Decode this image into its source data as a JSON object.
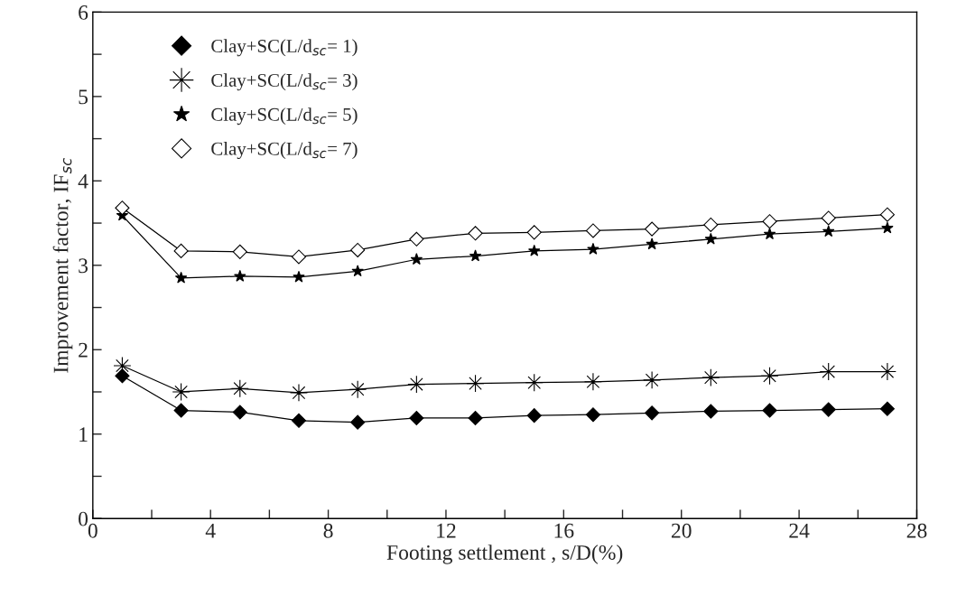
{
  "chart_data": {
    "type": "line",
    "xlabel": "Footing settlement , s/D(%)",
    "ylabel": "Improvement factor, IF$_{sc}$",
    "x": [
      1,
      3,
      5,
      7,
      9,
      11,
      13,
      15,
      17,
      19,
      21,
      23,
      25,
      27
    ],
    "series": [
      {
        "name": "Clay+SC(L/d$_{sc}$= 1)",
        "color": "#000000",
        "marker": "diamond",
        "values": [
          1.69,
          1.28,
          1.26,
          1.16,
          1.14,
          1.19,
          1.19,
          1.22,
          1.23,
          1.25,
          1.27,
          1.28,
          1.29,
          1.3
        ]
      },
      {
        "name": "Clay+SC(L/d$_{sc}$= 3)",
        "color": "#000000",
        "marker": "cross",
        "values": [
          1.81,
          1.5,
          1.54,
          1.49,
          1.53,
          1.59,
          1.6,
          1.61,
          1.62,
          1.64,
          1.67,
          1.69,
          1.74,
          1.74
        ]
      },
      {
        "name": "Clay+SC(L/d$_{sc}$= 5)",
        "color": "#000000",
        "marker": "star",
        "values": [
          3.59,
          2.85,
          2.87,
          2.86,
          2.93,
          3.07,
          3.11,
          3.17,
          3.19,
          3.25,
          3.31,
          3.37,
          3.4,
          3.44
        ]
      },
      {
        "name": "Clay+SC(L/d$_{sc}$= 7)",
        "color": "#ffffff",
        "marker": "diamond",
        "values": [
          3.68,
          3.17,
          3.16,
          3.1,
          3.18,
          3.31,
          3.38,
          3.39,
          3.41,
          3.43,
          3.48,
          3.52,
          3.56,
          3.6
        ]
      }
    ],
    "xlim": [
      0,
      28
    ],
    "ylim": [
      0,
      6
    ],
    "xticks": [
      0,
      {
        "value": 2,
        "label": null
      },
      4,
      {
        "value": 6,
        "label": null
      },
      8,
      {
        "value": 10,
        "label": null
      },
      12,
      {
        "value": 14,
        "label": null
      },
      16,
      {
        "value": 18,
        "label": null
      },
      20,
      {
        "value": 22,
        "label": null
      },
      24,
      {
        "value": 26,
        "label": null
      },
      28
    ],
    "yticks": [
      0,
      {
        "value": 0.5,
        "label": null
      },
      1,
      {
        "value": 1.5,
        "label": null
      },
      2,
      {
        "value": 2.5,
        "label": null
      },
      3,
      {
        "value": 3.5,
        "label": null
      },
      4,
      {
        "value": 4.5,
        "label": null
      },
      5,
      {
        "value": 5.5,
        "label": null
      },
      6
    ],
    "grid": false,
    "legend": "top left",
    "line_style": "solid"
  }
}
